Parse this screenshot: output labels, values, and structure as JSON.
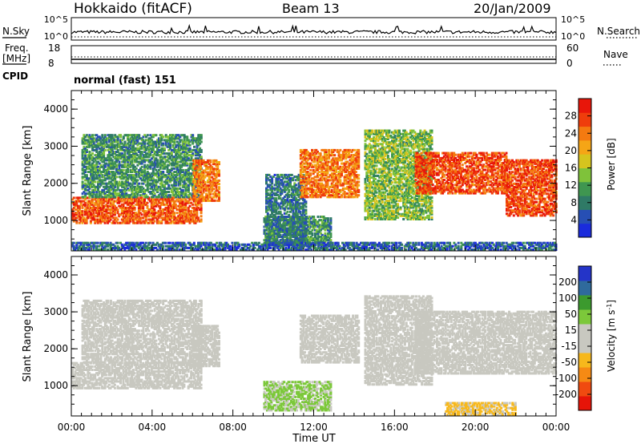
{
  "header": {
    "site": "Hokkaido (fitACF)",
    "beam": "Beam 13",
    "date": "20/Jan/2009"
  },
  "top_panels": {
    "nsky": {
      "label": "N.Sky",
      "ticks": [
        "10^5",
        "10^0"
      ]
    },
    "nsearch": {
      "label": "N.Search",
      "ticks": [
        "10^5",
        "10^0"
      ]
    },
    "freq": {
      "label": "Freq.",
      "unit": "[MHz]",
      "ticks": [
        "18",
        "8"
      ]
    },
    "nave": {
      "label": "Nave",
      "ticks": [
        "60",
        "0"
      ]
    },
    "cpid": {
      "label": "CPID",
      "text": "normal (fast) 151"
    }
  },
  "colors": {
    "power": [
      "#1a2bdc",
      "#274fb4",
      "#2f7a66",
      "#3f9650",
      "#7fc23a",
      "#d6c41e",
      "#f5a516",
      "#f47a10",
      "#ef3d0c",
      "#e8160a"
    ],
    "velocity": [
      "#e61408",
      "#f04a10",
      "#f68a14",
      "#f7b81c",
      "#c8c8c0",
      "#c8c8c0",
      "#7cc83a",
      "#3c9a2e",
      "#2f6a9c",
      "#2434c8"
    ]
  },
  "chart_data": [
    {
      "type": "heatmap",
      "name": "power",
      "xlabel": "",
      "ylabel": "Slant Range [km]",
      "x_ticks": [
        "00:00",
        "04:00",
        "08:00",
        "12:00",
        "16:00",
        "20:00",
        "00:00"
      ],
      "xlim_hours": [
        0,
        24
      ],
      "y_ticks": [
        "1000",
        "2000",
        "3000",
        "4000"
      ],
      "ylim": [
        180,
        4500
      ],
      "colorbar": {
        "label": "Power [dB]",
        "ticks": [
          "4",
          "8",
          "12",
          "16",
          "20",
          "24",
          "28"
        ],
        "range": [
          0,
          32
        ]
      },
      "regions": [
        {
          "t0": 0.0,
          "t1": 6.4,
          "r0": 900,
          "r1": 1600,
          "v": 26
        },
        {
          "t0": 0.5,
          "t1": 6.4,
          "r0": 1600,
          "r1": 3300,
          "v": 10
        },
        {
          "t0": 6.0,
          "t1": 7.3,
          "r0": 1500,
          "r1": 2600,
          "v": 24
        },
        {
          "t0": 9.5,
          "t1": 12.8,
          "r0": 300,
          "r1": 1100,
          "v": 10
        },
        {
          "t0": 9.6,
          "t1": 11.6,
          "r0": 300,
          "r1": 2200,
          "v": 8
        },
        {
          "t0": 11.3,
          "t1": 14.2,
          "r0": 1600,
          "r1": 2900,
          "v": 24
        },
        {
          "t0": 14.5,
          "t1": 17.8,
          "r0": 1000,
          "r1": 3400,
          "v": 14
        },
        {
          "t0": 17.0,
          "t1": 21.5,
          "r0": 1700,
          "r1": 2800,
          "v": 27
        },
        {
          "t0": 21.5,
          "t1": 24.0,
          "r0": 1100,
          "r1": 2600,
          "v": 27
        },
        {
          "t0": 0.0,
          "t1": 24.0,
          "r0": 180,
          "r1": 400,
          "v": 6
        }
      ]
    },
    {
      "type": "heatmap",
      "name": "velocity",
      "xlabel": "Time UT",
      "ylabel": "Slant Range [km]",
      "x_ticks": [
        "00:00",
        "04:00",
        "08:00",
        "12:00",
        "16:00",
        "20:00",
        "00:00"
      ],
      "xlim_hours": [
        0,
        24
      ],
      "y_ticks": [
        "1000",
        "2000",
        "3000",
        "4000"
      ],
      "ylim": [
        180,
        4500
      ],
      "colorbar": {
        "label": "Velocity [m s",
        "label_sup": "-1",
        "label_end": "]",
        "ticks": [
          "200",
          "100",
          "50",
          "15",
          "-15",
          "-50",
          "-100",
          "-200"
        ]
      },
      "regions": [
        {
          "t0": 0.0,
          "t1": 6.4,
          "r0": 900,
          "r1": 1600,
          "v": 0
        },
        {
          "t0": 0.5,
          "t1": 6.4,
          "r0": 1600,
          "r1": 3300,
          "v": 0
        },
        {
          "t0": 6.0,
          "t1": 7.3,
          "r0": 1500,
          "r1": 2600,
          "v": 0
        },
        {
          "t0": 9.5,
          "t1": 12.8,
          "r0": 300,
          "r1": 1100,
          "v": 60
        },
        {
          "t0": 11.3,
          "t1": 14.2,
          "r0": 1600,
          "r1": 2900,
          "v": 0
        },
        {
          "t0": 14.5,
          "t1": 17.8,
          "r0": 1000,
          "r1": 3400,
          "v": 0
        },
        {
          "t0": 17.0,
          "t1": 24.0,
          "r0": 1300,
          "r1": 3000,
          "v": 0
        },
        {
          "t0": 18.5,
          "t1": 22.0,
          "r0": 180,
          "r1": 500,
          "v": -60
        }
      ]
    }
  ]
}
